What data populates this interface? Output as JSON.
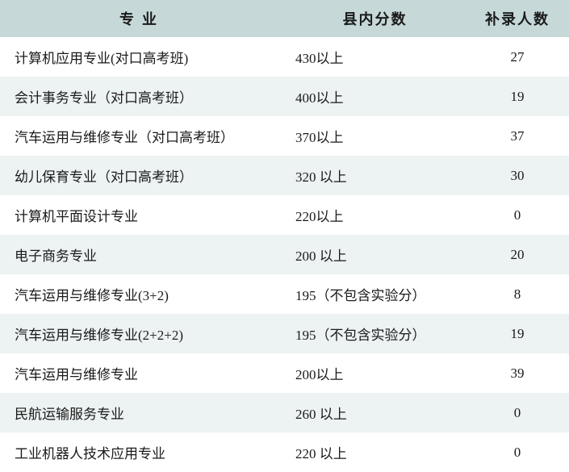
{
  "table": {
    "headers": {
      "major": "专业",
      "score": "县内分数",
      "count": "补录人数"
    },
    "rows": [
      {
        "major": "计算机应用专业(对口高考班)",
        "score": "430以上",
        "count": "27"
      },
      {
        "major": "会计事务专业（对口高考班）",
        "score": "400以上",
        "count": "19"
      },
      {
        "major": "汽车运用与维修专业（对口高考班）",
        "score": "370以上",
        "count": "37"
      },
      {
        "major": "幼儿保育专业（对口高考班）",
        "score": "320 以上",
        "count": "30"
      },
      {
        "major": "计算机平面设计专业",
        "score": "220以上",
        "count": "0"
      },
      {
        "major": "电子商务专业",
        "score": "200 以上",
        "count": "20"
      },
      {
        "major": "汽车运用与维修专业(3+2)",
        "score": "195（不包含实验分）",
        "count": "8"
      },
      {
        "major": "汽车运用与维修专业(2+2+2)",
        "score": "195（不包含实验分）",
        "count": "19"
      },
      {
        "major": "汽车运用与维修专业",
        "score": "200以上",
        "count": "39"
      },
      {
        "major": "民航运输服务专业",
        "score": "260 以上",
        "count": "0"
      },
      {
        "major": "工业机器人技术应用专业",
        "score": "220 以上",
        "count": "0"
      }
    ],
    "colors": {
      "header_bg": "#c6d8d8",
      "row_odd_bg": "#ffffff",
      "row_even_bg": "#edf2f2",
      "text": "#1a1a1a"
    },
    "column_widths": {
      "major": 352,
      "score": 225,
      "count": 128
    },
    "font_size_header": 18,
    "font_size_body": 17
  }
}
